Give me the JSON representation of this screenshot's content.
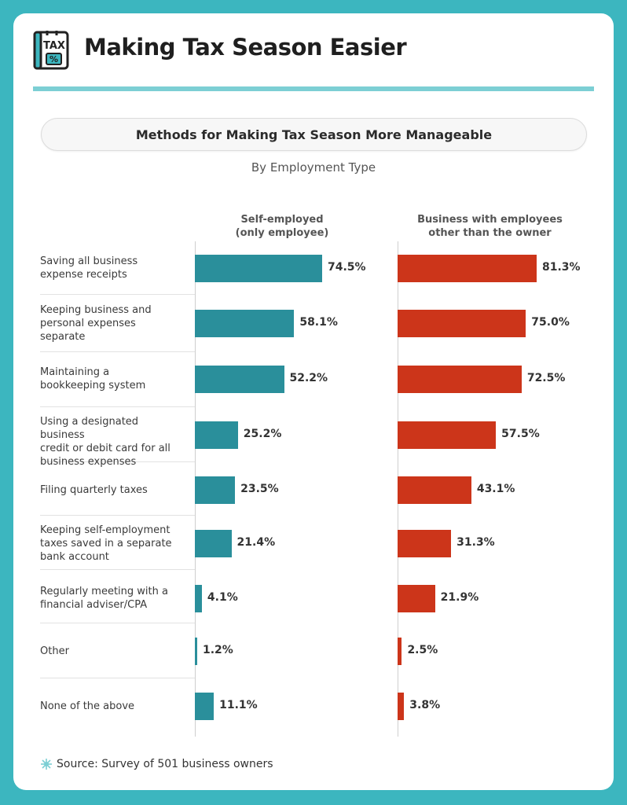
{
  "header": {
    "title": "Making Tax Season Easier",
    "icon_text": "TAX",
    "icon_symbol": "%"
  },
  "subtitle": "Methods for Making Tax Season More Manageable",
  "by_type": "By Employment Type",
  "footer": {
    "source": "Source: Survey of 501 business owners",
    "icon": "sun-burst-icon"
  },
  "colors": {
    "teal": "#2a8f9b",
    "red": "#cc351a",
    "background": "#3cb6bf",
    "rule": "#7ccfd4"
  },
  "chart_data": {
    "type": "bar",
    "orientation": "horizontal",
    "categories": [
      "Saving all business expense receipts",
      "Keeping business and personal expenses separate",
      "Maintaining a bookkeeping system",
      "Using a designated business credit or debit card for all business expenses",
      "Filing quarterly taxes",
      "Keeping self-employment taxes saved in a separate bank account",
      "Regularly meeting with a financial adviser/CPA",
      "Other",
      "None of the above"
    ],
    "series": [
      {
        "name": "Self-employed (only employee)",
        "name_lines": [
          "Self-employed",
          "(only employee)"
        ],
        "color": "#2a8f9b",
        "values": [
          74.5,
          58.1,
          52.2,
          25.2,
          23.5,
          21.4,
          4.1,
          1.2,
          11.1
        ],
        "labels": [
          "74.5%",
          "58.1%",
          "52.2%",
          "25.2%",
          "23.5%",
          "21.4%",
          "4.1%",
          "1.2%",
          "11.1%"
        ]
      },
      {
        "name": "Business with employees other than the owner",
        "name_lines": [
          "Business with employees",
          "other than the owner"
        ],
        "color": "#cc351a",
        "values": [
          81.3,
          75.0,
          72.5,
          57.5,
          43.1,
          31.3,
          21.9,
          2.5,
          3.8
        ],
        "labels": [
          "81.3%",
          "75.0%",
          "72.5%",
          "57.5%",
          "43.1%",
          "31.3%",
          "21.9%",
          "2.5%",
          "3.8%"
        ]
      }
    ],
    "unit": "%",
    "grid": false
  }
}
